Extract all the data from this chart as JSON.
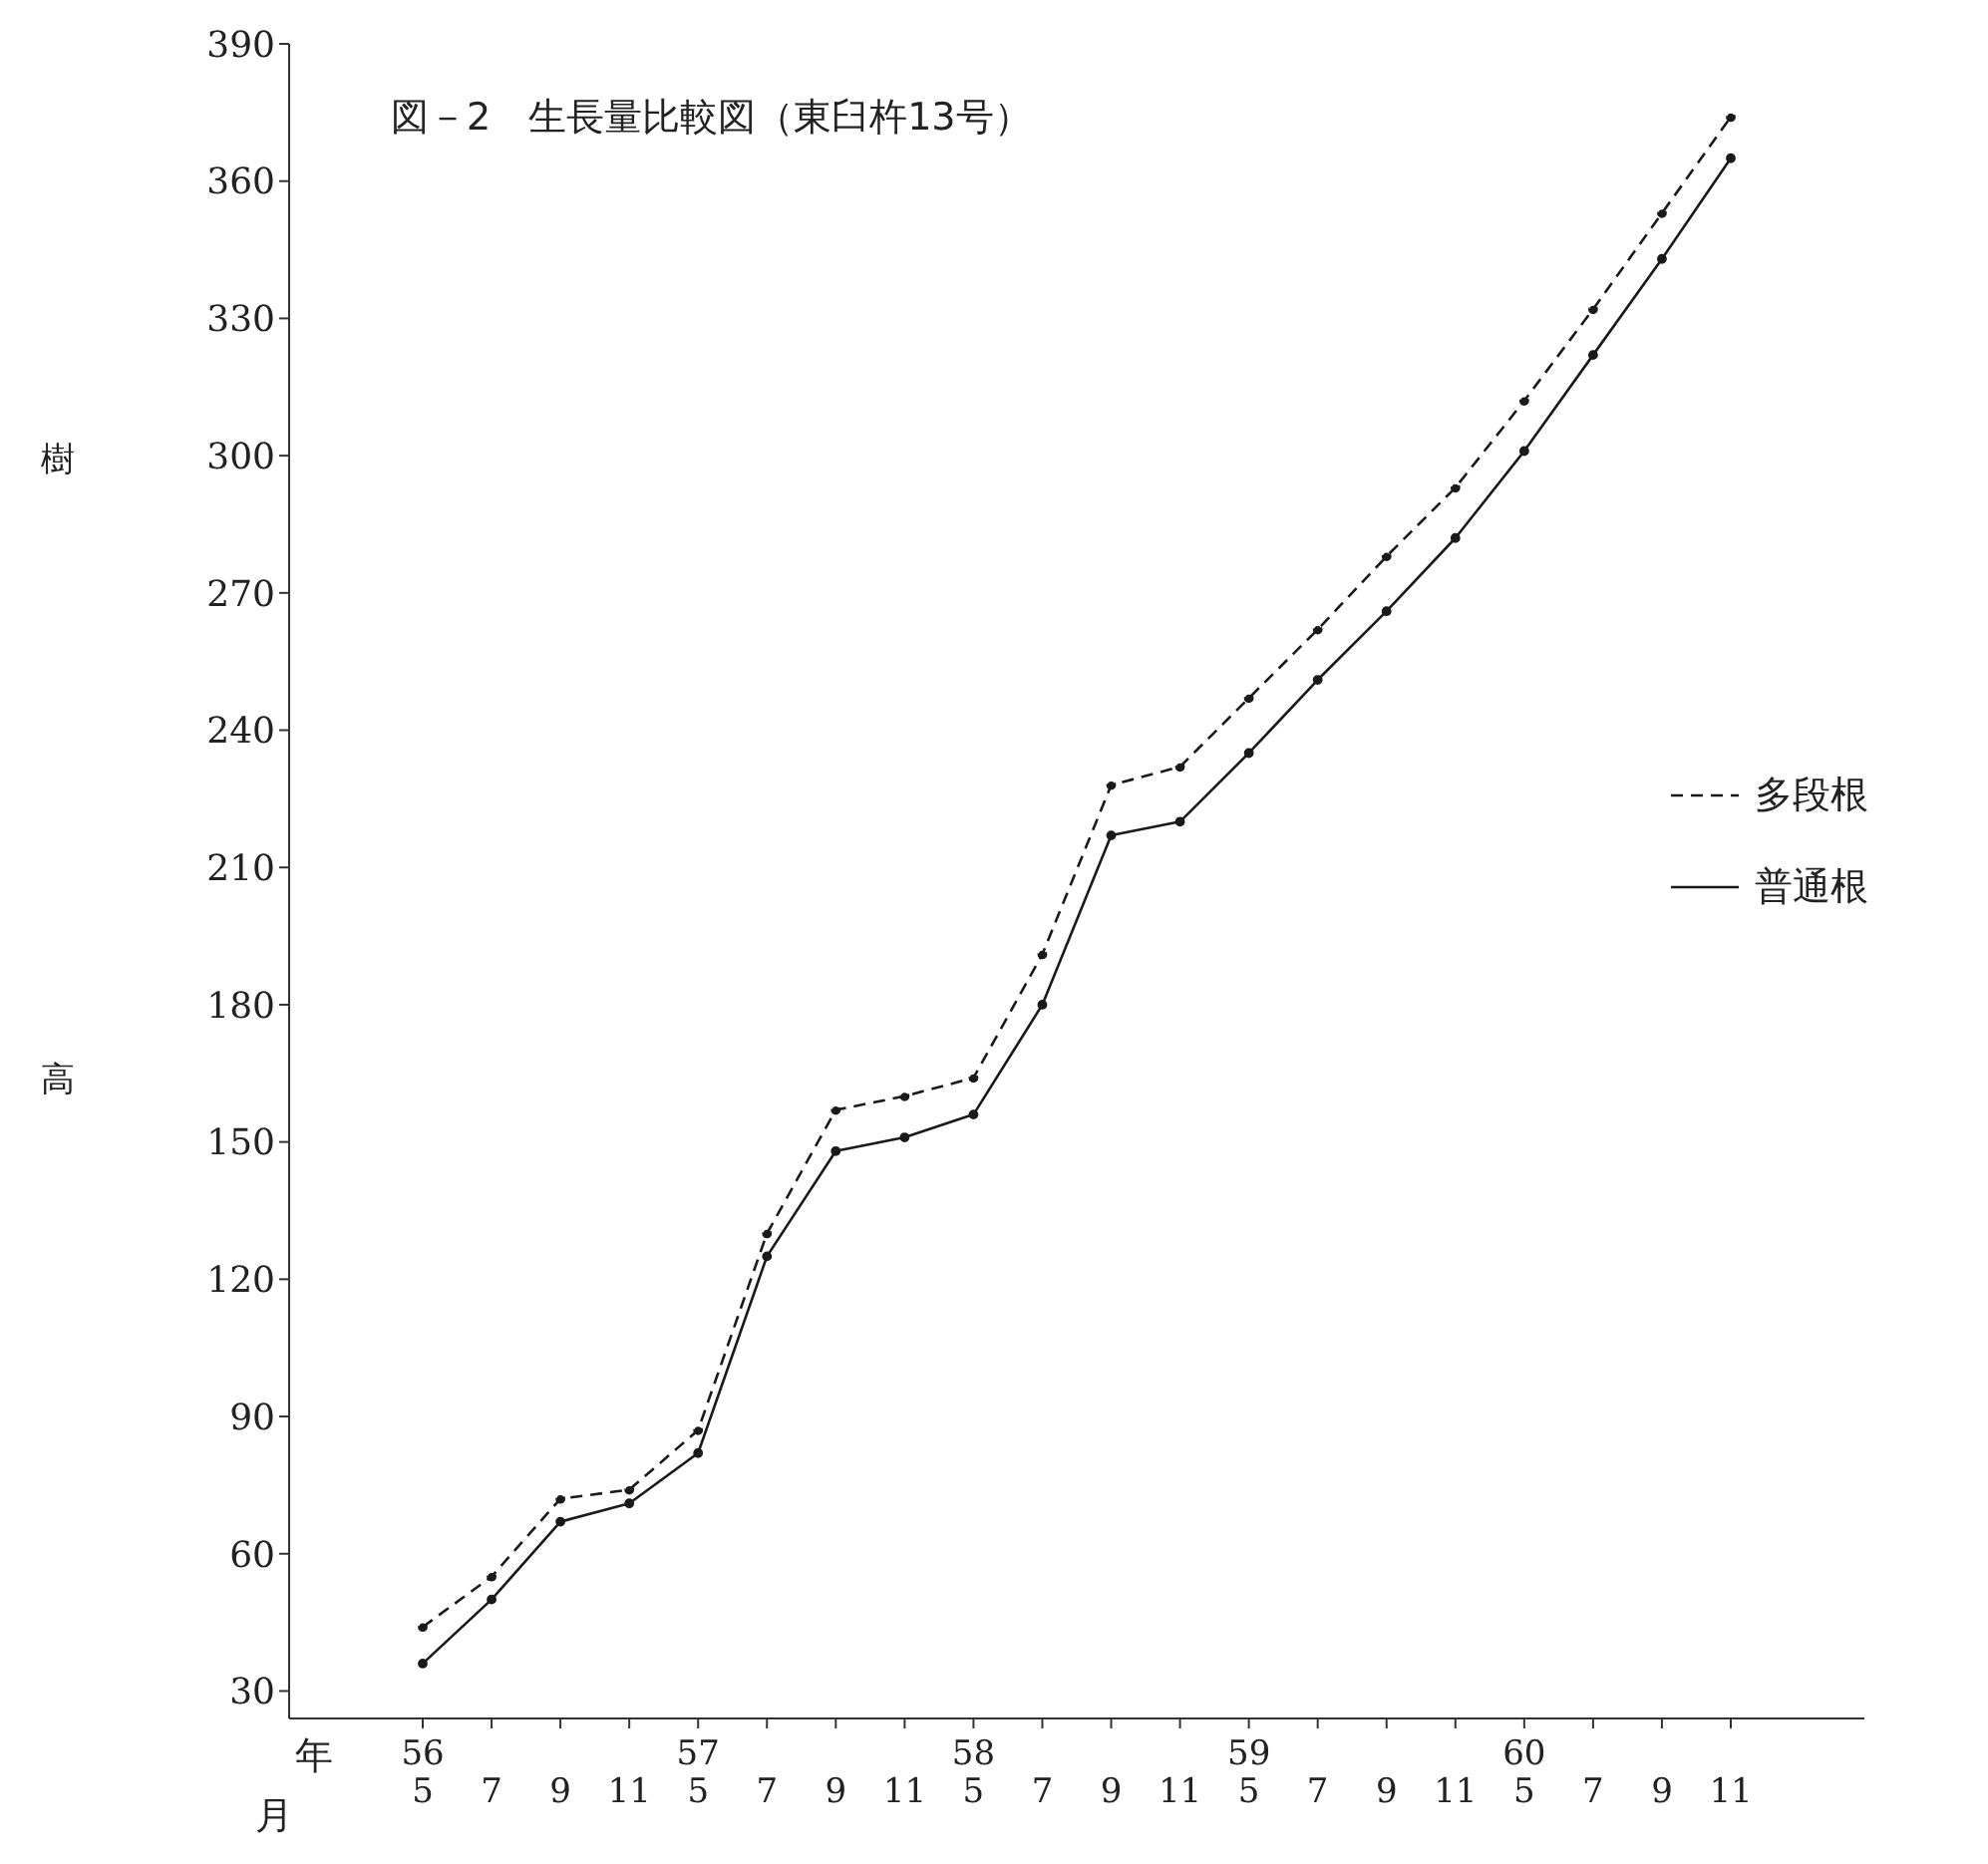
{
  "chart_data": {
    "type": "line",
    "title": "図－2　生長量比較図（東臼杵13号）",
    "ylabel": "樹高",
    "categories": [
      "56\n5",
      "7",
      "9",
      "11",
      "57\n5",
      "7",
      "9",
      "11",
      "58\n5",
      "7",
      "9",
      "11",
      "59\n5",
      "7",
      "9",
      "11",
      "60\n5",
      "7",
      "9",
      "11"
    ],
    "series": [
      {
        "name": "多段根",
        "color": "#1a1a1a",
        "line_style": "dashed",
        "values": [
          44,
          55,
          72,
          74,
          87,
          130,
          157,
          160,
          164,
          191,
          228,
          232,
          247,
          262,
          278,
          293,
          312,
          332,
          353,
          374
        ]
      },
      {
        "name": "普通根",
        "color": "#1a1a1a",
        "line_style": "solid",
        "values": [
          36,
          50,
          67,
          71,
          82,
          125,
          148,
          151,
          156,
          180,
          217,
          220,
          235,
          251,
          266,
          282,
          301,
          322,
          343,
          365
        ]
      }
    ],
    "ylim": [
      24,
      390
    ],
    "yticks": [
      30,
      60,
      90,
      120,
      150,
      180,
      210,
      240,
      270,
      300,
      330,
      360,
      390
    ],
    "legend": "right",
    "marker": "circle",
    "annotations": [
      "年",
      "月"
    ]
  }
}
